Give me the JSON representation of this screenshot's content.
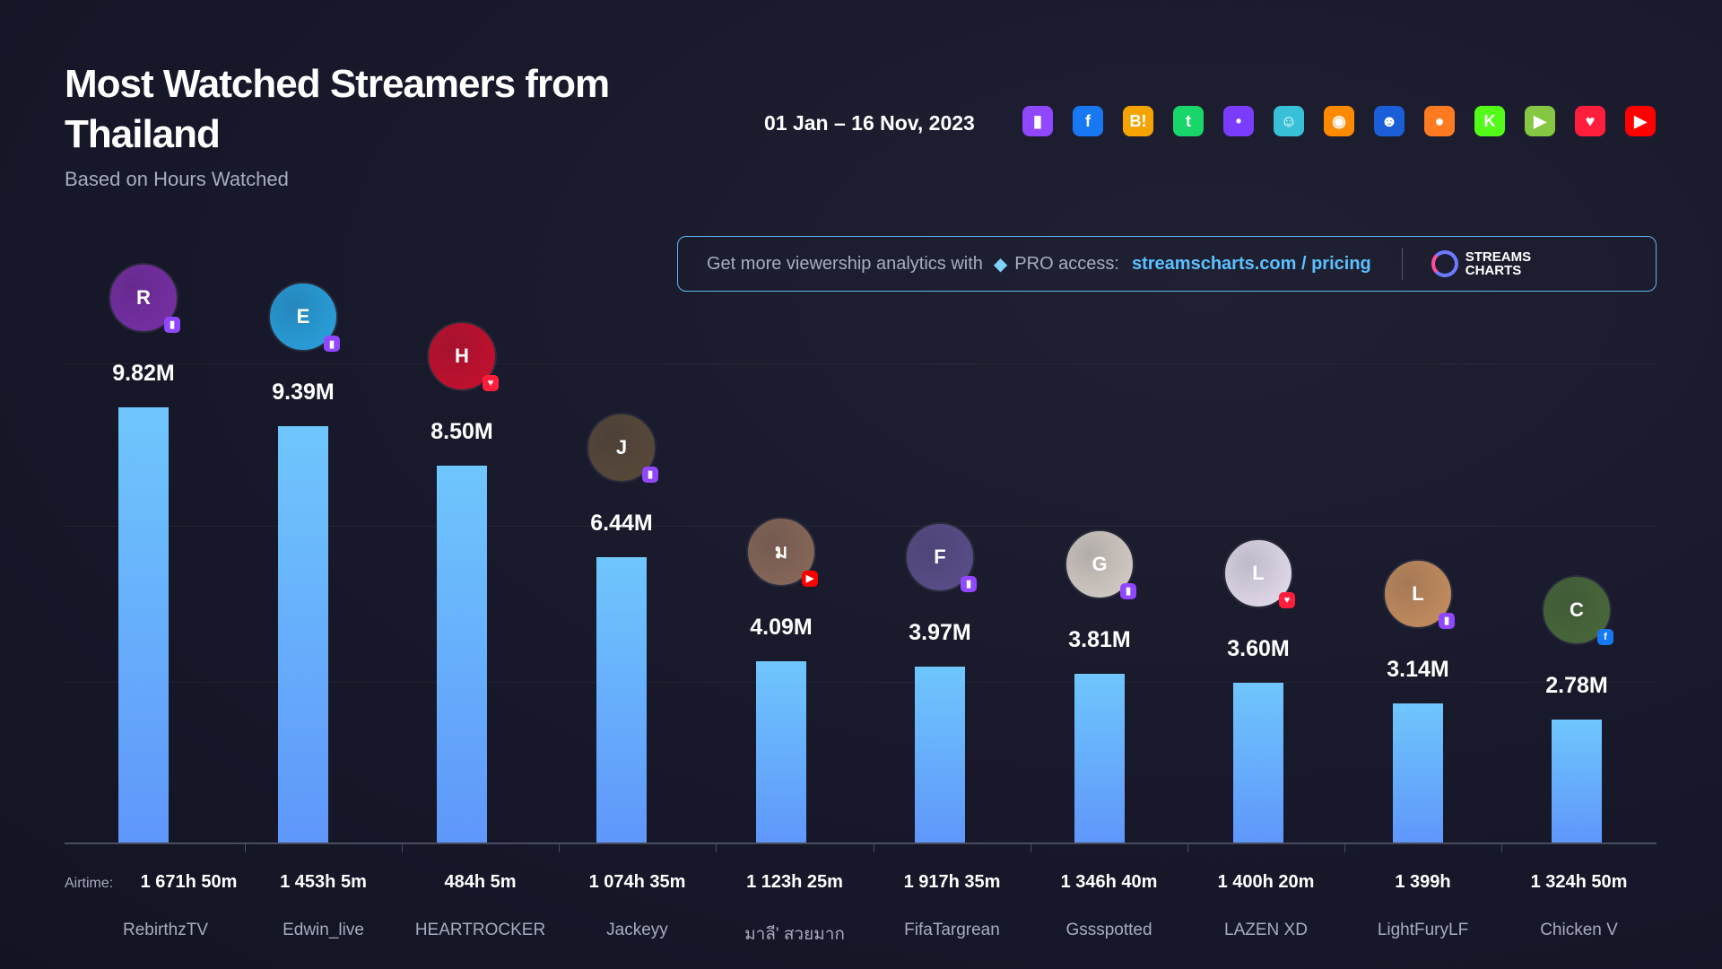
{
  "header": {
    "title": "Most Watched Streamers from Thailand",
    "subtitle": "Based on Hours Watched",
    "date_range": "01 Jan – 16 Nov, 2023"
  },
  "platform_icons": [
    {
      "name": "twitch-icon",
      "glyph": "▮",
      "bg": "#9146ff"
    },
    {
      "name": "facebook-icon",
      "glyph": "f",
      "bg": "#1877f2"
    },
    {
      "name": "booyah-icon",
      "glyph": "B!",
      "bg": "#f5a300"
    },
    {
      "name": "trovo-icon",
      "glyph": "t",
      "bg": "#19d66b"
    },
    {
      "name": "nimo-icon",
      "glyph": "•",
      "bg": "#7a3cff"
    },
    {
      "name": "bigo-icon",
      "glyph": "☺",
      "bg": "#38c0d8"
    },
    {
      "name": "huya-icon",
      "glyph": "◉",
      "bg": "#ff8a00"
    },
    {
      "name": "afreeca-icon",
      "glyph": "☻",
      "bg": "#1a5fd8"
    },
    {
      "name": "douyu-icon",
      "glyph": "●",
      "bg": "#ff7a20"
    },
    {
      "name": "kick-icon",
      "glyph": "K",
      "bg": "#53fc18"
    },
    {
      "name": "rumble-icon",
      "glyph": "▶",
      "bg": "#85c742"
    },
    {
      "name": "heart-icon",
      "glyph": "♥",
      "bg": "#ff1e3c"
    },
    {
      "name": "youtube-icon",
      "glyph": "▶",
      "bg": "#ff0000"
    }
  ],
  "banner": {
    "text": "Get more viewership analytics with",
    "pro": "PRO access:",
    "link": "streamscharts.com / pricing",
    "logo_line1": "STREAMS",
    "logo_line2": "CHARTS"
  },
  "airtime_label": "Airtime:",
  "chart_data": {
    "type": "bar",
    "title": "Most Watched Streamers from Thailand",
    "ylabel": "Hours Watched",
    "ylim": [
      0,
      10
    ],
    "unit": "M",
    "categories": [
      "RebirthzTV",
      "Edwin_live",
      "HEARTROCKER",
      "Jackeyy",
      "มาลี' สวยมาก",
      "FifaTargrean",
      "Gssspotted",
      "LAZEN XD",
      "LightFuryLF",
      "Chicken V"
    ],
    "values": [
      9.82,
      9.39,
      8.5,
      6.44,
      4.09,
      3.97,
      3.81,
      3.6,
      3.14,
      2.78
    ],
    "labels": [
      "9.82M",
      "9.39M",
      "8.50M",
      "6.44M",
      "4.09M",
      "3.97M",
      "3.81M",
      "3.60M",
      "3.14M",
      "2.78M"
    ],
    "airtime": [
      "1 671h 50m",
      "1 453h 5m",
      "484h 5m",
      "1 074h 35m",
      "1 123h 25m",
      "1 917h 35m",
      "1 346h 40m",
      "1 400h 20m",
      "1 399h",
      "1 324h 50m"
    ],
    "platforms": [
      "twitch",
      "twitch",
      "heart",
      "twitch",
      "youtube",
      "twitch",
      "twitch",
      "heart",
      "twitch",
      "facebook"
    ],
    "avatar_colors": [
      "#7a2fa8",
      "#29a3e0",
      "#c8102e",
      "#5a4a3a",
      "#8a6a5a",
      "#5b4f8a",
      "#d8d0c8",
      "#e8e0f0",
      "#c89060",
      "#4a6a3a"
    ]
  },
  "platform_colors": {
    "twitch": "#9146ff",
    "youtube": "#ff0000",
    "facebook": "#1877f2",
    "heart": "#ff1e3c"
  }
}
